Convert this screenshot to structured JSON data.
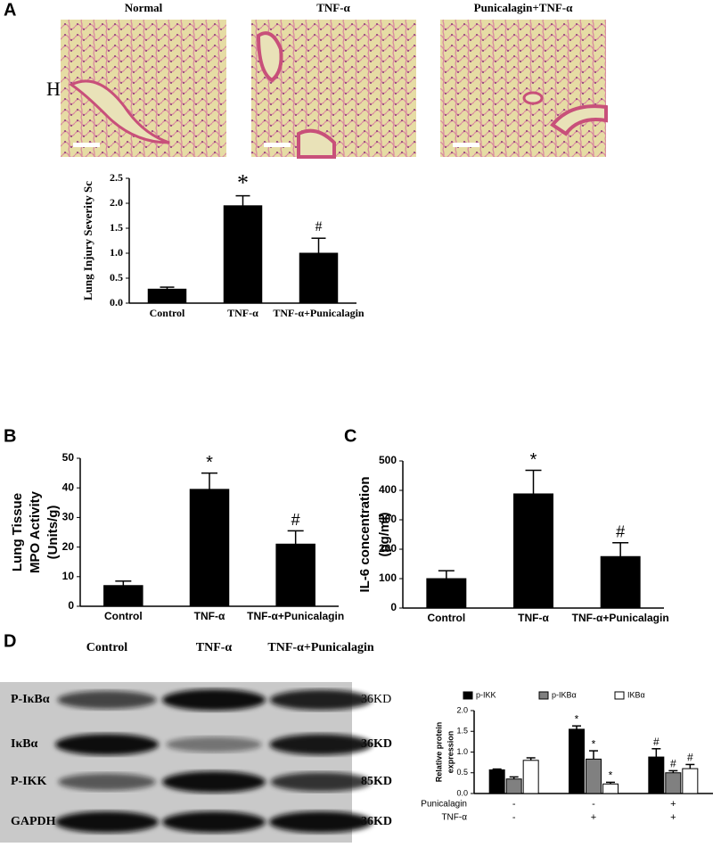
{
  "figure": {
    "panels": [
      "A",
      "B",
      "C",
      "D"
    ],
    "he": {
      "label": "HE",
      "images": [
        "Normal",
        "TNF-α",
        "Punicalagin+TNF-α"
      ]
    },
    "blot": {
      "lanes": [
        "Control",
        "TNF-α",
        "TNF-α+Punicalagin"
      ],
      "rows": [
        {
          "name": "P-IκBα",
          "size": "36KD"
        },
        {
          "name": "IκBα",
          "size": "36KD"
        },
        {
          "name": "P-IKK",
          "size": "85KD"
        },
        {
          "name": "GAPDH",
          "size": "36KD"
        }
      ]
    }
  },
  "chart_data": [
    {
      "type": "bar",
      "y_label": [
        "Lung Injury Severity Sc"
      ],
      "categories": [
        "Control",
        "TNF-α",
        "TNF-α+Punicalagin"
      ],
      "values": [
        0.28,
        1.95,
        1.0
      ],
      "errors": [
        0.04,
        0.2,
        0.3
      ],
      "annotations": [
        null,
        "*",
        "#"
      ],
      "color": "#000000",
      "ylim": [
        0,
        2.5
      ],
      "yticks": [
        {
          "value": 0,
          "label": "0.0"
        },
        {
          "value": 0.5,
          "label": "0.5"
        },
        {
          "value": 1,
          "label": "1.0"
        },
        {
          "value": 1.5,
          "label": "1.5"
        },
        {
          "value": 2,
          "label": "2.0"
        },
        {
          "value": 2.5,
          "label": "2.5"
        }
      ]
    },
    {
      "type": "bar",
      "y_label": [
        "Lung Tissue",
        "MPO Activity",
        "(Units/g)"
      ],
      "categories": [
        "Control",
        "TNF-α",
        "TNF-α+Punicalagin"
      ],
      "values": [
        7,
        39.5,
        21
      ],
      "errors": [
        1.5,
        5.5,
        4.5
      ],
      "annotations": [
        null,
        "*",
        "#"
      ],
      "color": "#000000",
      "ylim": [
        0,
        50
      ],
      "yticks": [
        0,
        10,
        20,
        30,
        40,
        50
      ]
    },
    {
      "type": "bar",
      "y_label": [
        "IL-6 concentration",
        "(pg/ml)"
      ],
      "categories": [
        "Control",
        "TNF-α",
        "TNF-α+Punicalagin"
      ],
      "values": [
        100,
        388,
        175
      ],
      "errors": [
        27,
        80,
        47
      ],
      "annotations": [
        null,
        "*",
        "#"
      ],
      "color": "#000000",
      "ylim": [
        0,
        500
      ],
      "yticks": [
        0,
        100,
        200,
        300,
        400,
        500
      ]
    },
    {
      "type": "grouped-bar",
      "y_label": [
        "Relative protein",
        "expression"
      ],
      "categories": [
        null,
        null,
        null
      ],
      "series": [
        {
          "name": "p-IKK",
          "color": "#000000",
          "values": [
            0.57,
            1.55,
            0.88
          ],
          "errors": [
            0.02,
            0.08,
            0.2
          ],
          "annotations": [
            null,
            "*",
            "#"
          ]
        },
        {
          "name": "p-IKBα",
          "color": "#808080",
          "values": [
            0.35,
            0.83,
            0.5
          ],
          "errors": [
            0.05,
            0.2,
            0.05
          ],
          "annotations": [
            null,
            "*",
            "#"
          ]
        },
        {
          "name": "IKBα",
          "color": "#ffffff",
          "values": [
            0.8,
            0.23,
            0.6
          ],
          "errors": [
            0.06,
            0.04,
            0.1
          ],
          "annotations": [
            null,
            "*",
            "#"
          ]
        }
      ],
      "legend": "top",
      "factors": [
        {
          "name": "Punicalagin",
          "values": [
            "-",
            "-",
            "+"
          ]
        },
        {
          "name": "TNF-α",
          "values": [
            "-",
            "+",
            "+"
          ]
        }
      ],
      "ylim": [
        0,
        2
      ],
      "yticks": [
        {
          "value": 0,
          "label": "0.0"
        },
        {
          "value": 0.5,
          "label": "0.5"
        },
        {
          "value": 1,
          "label": "1.0"
        },
        {
          "value": 1.5,
          "label": "1.5"
        },
        {
          "value": 2,
          "label": "2.0"
        }
      ]
    }
  ]
}
